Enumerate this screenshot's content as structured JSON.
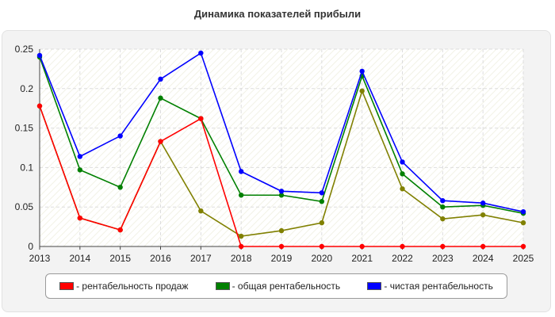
{
  "chart_data": {
    "type": "line",
    "title": "Динамика показателей прибыли",
    "x": [
      "2013",
      "2014",
      "2015",
      "2016",
      "2017",
      "2018",
      "2019",
      "2020",
      "2021",
      "2022",
      "2023",
      "2024",
      "2025"
    ],
    "ylim": [
      0,
      0.25
    ],
    "yticks": [
      "0",
      "0.05",
      "0.1",
      "0.15",
      "0.2",
      "0.25"
    ],
    "grid": true,
    "legend_position": "bottom",
    "series": [
      {
        "name": "- рентабельность продаж",
        "color": "#ff0000",
        "legend_color": "#ff0000",
        "values": [
          0.178,
          0.036,
          0.021,
          0.133,
          0.162,
          0.0,
          0.0,
          0.0,
          0.0,
          0.0,
          0.0,
          0.0,
          0.0
        ]
      },
      {
        "name": "- общая рентабельность",
        "color": "#008000",
        "legend_color": "#008000",
        "values": [
          0.24,
          0.097,
          0.075,
          0.188,
          0.162,
          0.065,
          0.065,
          0.057,
          0.216,
          0.092,
          0.05,
          0.052,
          0.042
        ]
      },
      {
        "name": "- чистая рентабельность",
        "color": "#0000ff",
        "legend_color": "#0000ff",
        "values": [
          0.242,
          0.114,
          0.14,
          0.212,
          0.245,
          0.095,
          0.07,
          0.068,
          0.222,
          0.107,
          0.058,
          0.055,
          0.044
        ]
      },
      {
        "name": "",
        "color": "#808000",
        "values": [
          0.178,
          0.036,
          0.021,
          0.133,
          0.045,
          0.013,
          0.02,
          0.03,
          0.197,
          0.073,
          0.035,
          0.04,
          0.03
        ]
      }
    ]
  }
}
